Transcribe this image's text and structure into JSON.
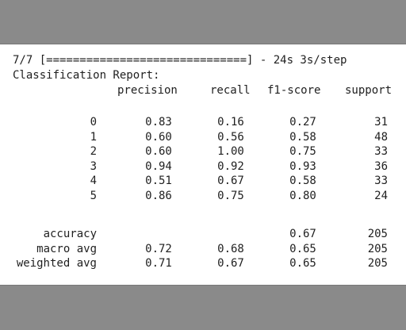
{
  "progress_line": "7/7 [==============================] - 24s 3s/step",
  "report_title": "Classification Report:",
  "headers": {
    "precision": "precision",
    "recall": "recall",
    "f1": "f1-score",
    "support": "support"
  },
  "rows": [
    {
      "label": "0",
      "precision": "0.83",
      "recall": "0.16",
      "f1": "0.27",
      "support": "31"
    },
    {
      "label": "1",
      "precision": "0.60",
      "recall": "0.56",
      "f1": "0.58",
      "support": "48"
    },
    {
      "label": "2",
      "precision": "0.60",
      "recall": "1.00",
      "f1": "0.75",
      "support": "33"
    },
    {
      "label": "3",
      "precision": "0.94",
      "recall": "0.92",
      "f1": "0.93",
      "support": "36"
    },
    {
      "label": "4",
      "precision": "0.51",
      "recall": "0.67",
      "f1": "0.58",
      "support": "33"
    },
    {
      "label": "5",
      "precision": "0.86",
      "recall": "0.75",
      "f1": "0.80",
      "support": "24"
    }
  ],
  "summary": [
    {
      "label": "accuracy",
      "precision": "",
      "recall": "",
      "f1": "0.67",
      "support": "205"
    },
    {
      "label": "macro avg",
      "precision": "0.72",
      "recall": "0.68",
      "f1": "0.65",
      "support": "205"
    },
    {
      "label": "weighted avg",
      "precision": "0.71",
      "recall": "0.67",
      "f1": "0.65",
      "support": "205"
    }
  ],
  "colors": {
    "background": "#8a8a8a",
    "panel": "#ffffff",
    "text": "#1f1f1f"
  }
}
